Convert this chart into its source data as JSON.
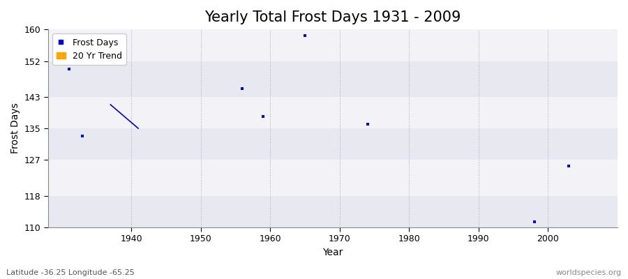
{
  "title": "Yearly Total Frost Days 1931 - 2009",
  "xlabel": "Year",
  "ylabel": "Frost Days",
  "background_color": "#ffffff",
  "plot_bg_color": "#f0f0f5",
  "frost_days_x": [
    1931,
    1933,
    1956,
    1959,
    1965,
    1974,
    1998,
    2003
  ],
  "frost_days_y": [
    150,
    133,
    145,
    138,
    158.5,
    136,
    111.5,
    125.5
  ],
  "trend_x": [
    1937,
    1941
  ],
  "trend_y": [
    141,
    135
  ],
  "ylim": [
    110,
    160
  ],
  "xlim": [
    1928,
    2010
  ],
  "yticks": [
    110,
    118,
    127,
    135,
    143,
    152,
    160
  ],
  "xticks": [
    1940,
    1950,
    1960,
    1970,
    1980,
    1990,
    2000
  ],
  "point_color": "#0000cc",
  "trend_color": "#0000cc",
  "trend_legend_color": "#ffa500",
  "marker_size": 3,
  "subtitle_lat": "Latitude -36.25 Longitude -65.25",
  "watermark": "worldspecies.org",
  "title_fontsize": 15,
  "axis_fontsize": 10,
  "tick_fontsize": 9,
  "stripe_colors": [
    "#e8e8f0",
    "#f2f2f7"
  ]
}
